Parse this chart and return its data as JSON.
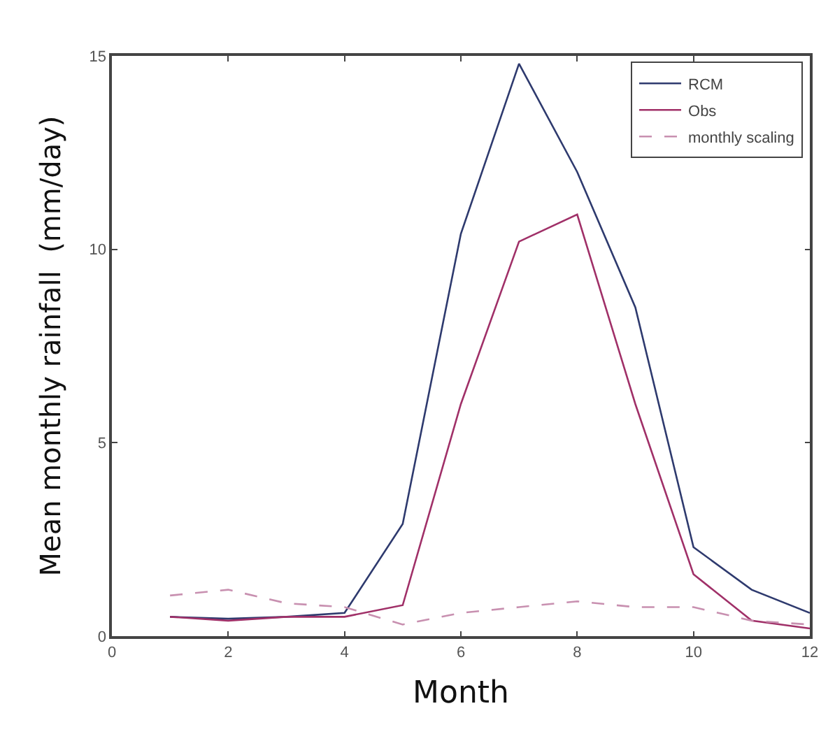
{
  "chart_data": {
    "type": "line",
    "xlabel": "Month",
    "ylabel": "Mean monthly rainfall  (mm/day)",
    "x": [
      1,
      2,
      3,
      4,
      5,
      6,
      7,
      8,
      9,
      10,
      11,
      12
    ],
    "series": [
      {
        "name": "RCM",
        "color": "#2e3a6e",
        "values": [
          0.5,
          0.45,
          0.5,
          0.6,
          2.9,
          10.4,
          14.8,
          12.0,
          8.5,
          2.3,
          1.2,
          0.6
        ]
      },
      {
        "name": "Obs",
        "color": "#a03068",
        "values": [
          0.5,
          0.4,
          0.5,
          0.5,
          0.8,
          6.0,
          10.2,
          10.9,
          6.0,
          1.6,
          0.4,
          0.2
        ]
      },
      {
        "name": "monthly scaling",
        "color": "#c890b0",
        "line_style": "dashed",
        "values": [
          1.05,
          1.2,
          0.85,
          0.75,
          0.3,
          0.6,
          0.75,
          0.9,
          0.75,
          0.75,
          0.4,
          0.3
        ]
      }
    ],
    "xlim": [
      0,
      12
    ],
    "xticks": [
      0,
      2,
      4,
      6,
      8,
      10,
      12
    ],
    "ylim": [
      0,
      15
    ],
    "yticks": [
      0,
      5,
      10,
      15
    ],
    "grid": false,
    "legend": "top right",
    "marker": "none",
    "line_style": "solid"
  }
}
